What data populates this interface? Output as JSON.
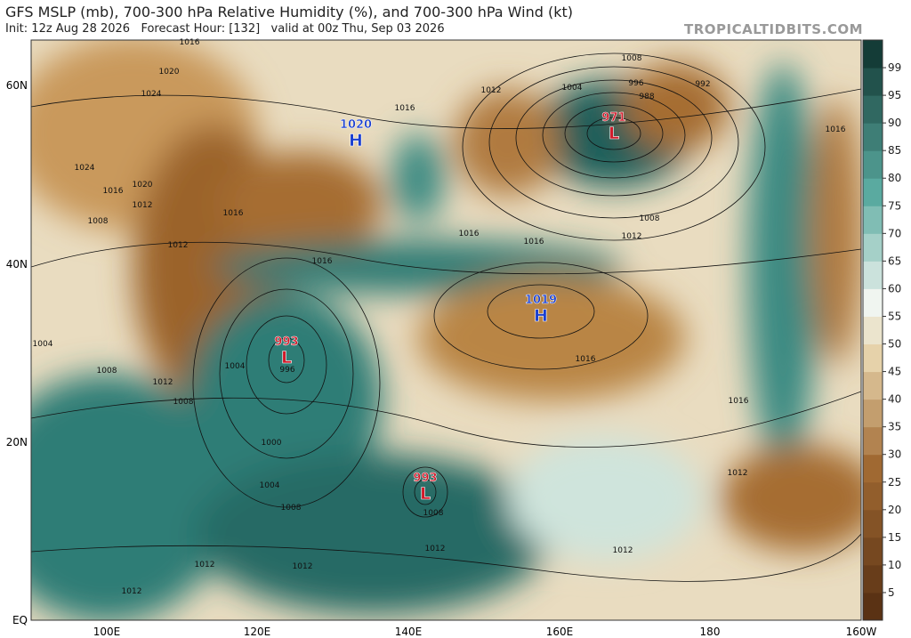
{
  "header": {
    "title": "GFS MSLP (mb), 700-300 hPa Relative Humidity (%), and 700-300 hPa Wind (kt)",
    "subtitle": "Init: 12z Aug 28 2026   Forecast Hour: [132]   valid at 00z Thu, Sep 03 2026",
    "watermark": "TROPICALTIDBITS.COM"
  },
  "map": {
    "lat_labels": [
      "60N",
      "40N",
      "20N",
      "EQ"
    ],
    "lon_labels": [
      "100E",
      "120E",
      "140E",
      "160E",
      "180",
      "160W"
    ],
    "centers": [
      {
        "letter": "H",
        "pressure": "1020"
      },
      {
        "letter": "L",
        "pressure": "971"
      },
      {
        "letter": "H",
        "pressure": "1019"
      },
      {
        "letter": "L",
        "pressure": "993"
      },
      {
        "letter": "L",
        "pressure": "993"
      }
    ],
    "isobar_labels": [
      "1016",
      "1020",
      "1024",
      "1024",
      "1016",
      "1020",
      "1012",
      "1016",
      "1008",
      "1012",
      "1016",
      "1016",
      "1012",
      "1008",
      "1004",
      "996",
      "988",
      "992",
      "1016",
      "1008",
      "1012",
      "1016",
      "1016",
      "1004",
      "1008",
      "1004",
      "996",
      "1012",
      "1008",
      "1000",
      "1004",
      "1008",
      "1008",
      "1012",
      "1016",
      "1016",
      "1012",
      "1012",
      "1012",
      "1012",
      "1012"
    ]
  },
  "colorbar": {
    "ticks": [
      5,
      10,
      15,
      20,
      25,
      30,
      35,
      40,
      45,
      50,
      55,
      60,
      65,
      70,
      75,
      80,
      85,
      90,
      95,
      99
    ]
  }
}
